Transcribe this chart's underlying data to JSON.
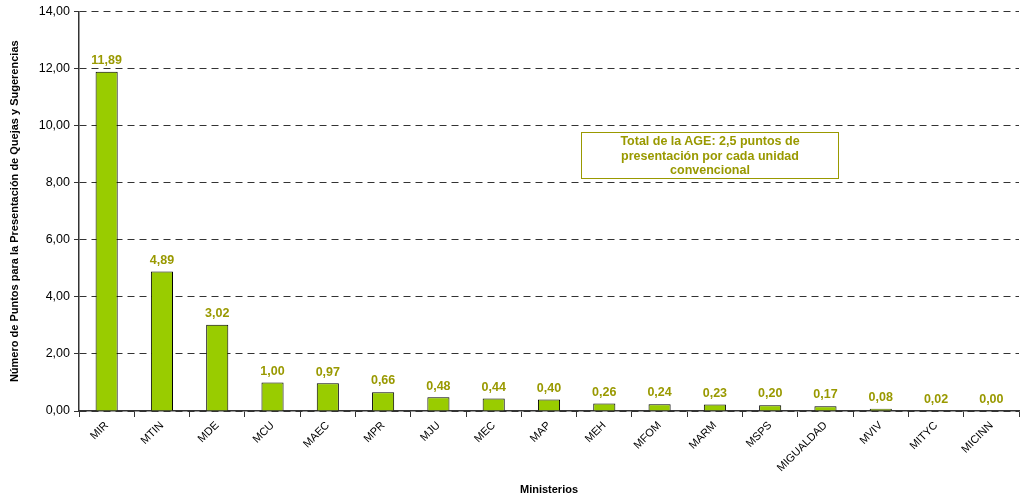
{
  "chart_data": {
    "type": "bar",
    "xlabel": "Ministerios",
    "ylabel": "Número de Puntos para la Presentación de Quejas y Sugerencias",
    "categories": [
      "MIR",
      "MTIN",
      "MDE",
      "MCU",
      "MAEC",
      "MPR",
      "MJU",
      "MEC",
      "MAP",
      "MEH",
      "MFOM",
      "MARM",
      "MSPS",
      "MIGUALDAD",
      "MVIV",
      "MITYC",
      "MICINN"
    ],
    "values": [
      11.89,
      4.89,
      3.02,
      1.0,
      0.97,
      0.66,
      0.48,
      0.44,
      0.4,
      0.26,
      0.24,
      0.23,
      0.2,
      0.17,
      0.08,
      0.02,
      0.0
    ],
    "value_labels": [
      "11,89",
      "4,89",
      "3,02",
      "1,00",
      "0,97",
      "0,66",
      "0,48",
      "0,44",
      "0,40",
      "0,26",
      "0,24",
      "0,23",
      "0,20",
      "0,17",
      "0,08",
      "0,02",
      "0,00"
    ],
    "color": "#99cc00",
    "ylim": [
      0,
      14
    ],
    "yticks": [
      {
        "value": 0,
        "label": "0,00"
      },
      {
        "value": 2,
        "label": "2,00"
      },
      {
        "value": 4,
        "label": "4,00"
      },
      {
        "value": 6,
        "label": "6,00"
      },
      {
        "value": 8,
        "label": "8,00"
      },
      {
        "value": 10,
        "label": "10,00"
      },
      {
        "value": 12,
        "label": "12,00"
      },
      {
        "value": 14,
        "label": "14,00"
      }
    ],
    "grid": "y",
    "annotations": [
      "Total de la AGE: 2,5 puntos de presentación por cada unidad convencional"
    ]
  }
}
